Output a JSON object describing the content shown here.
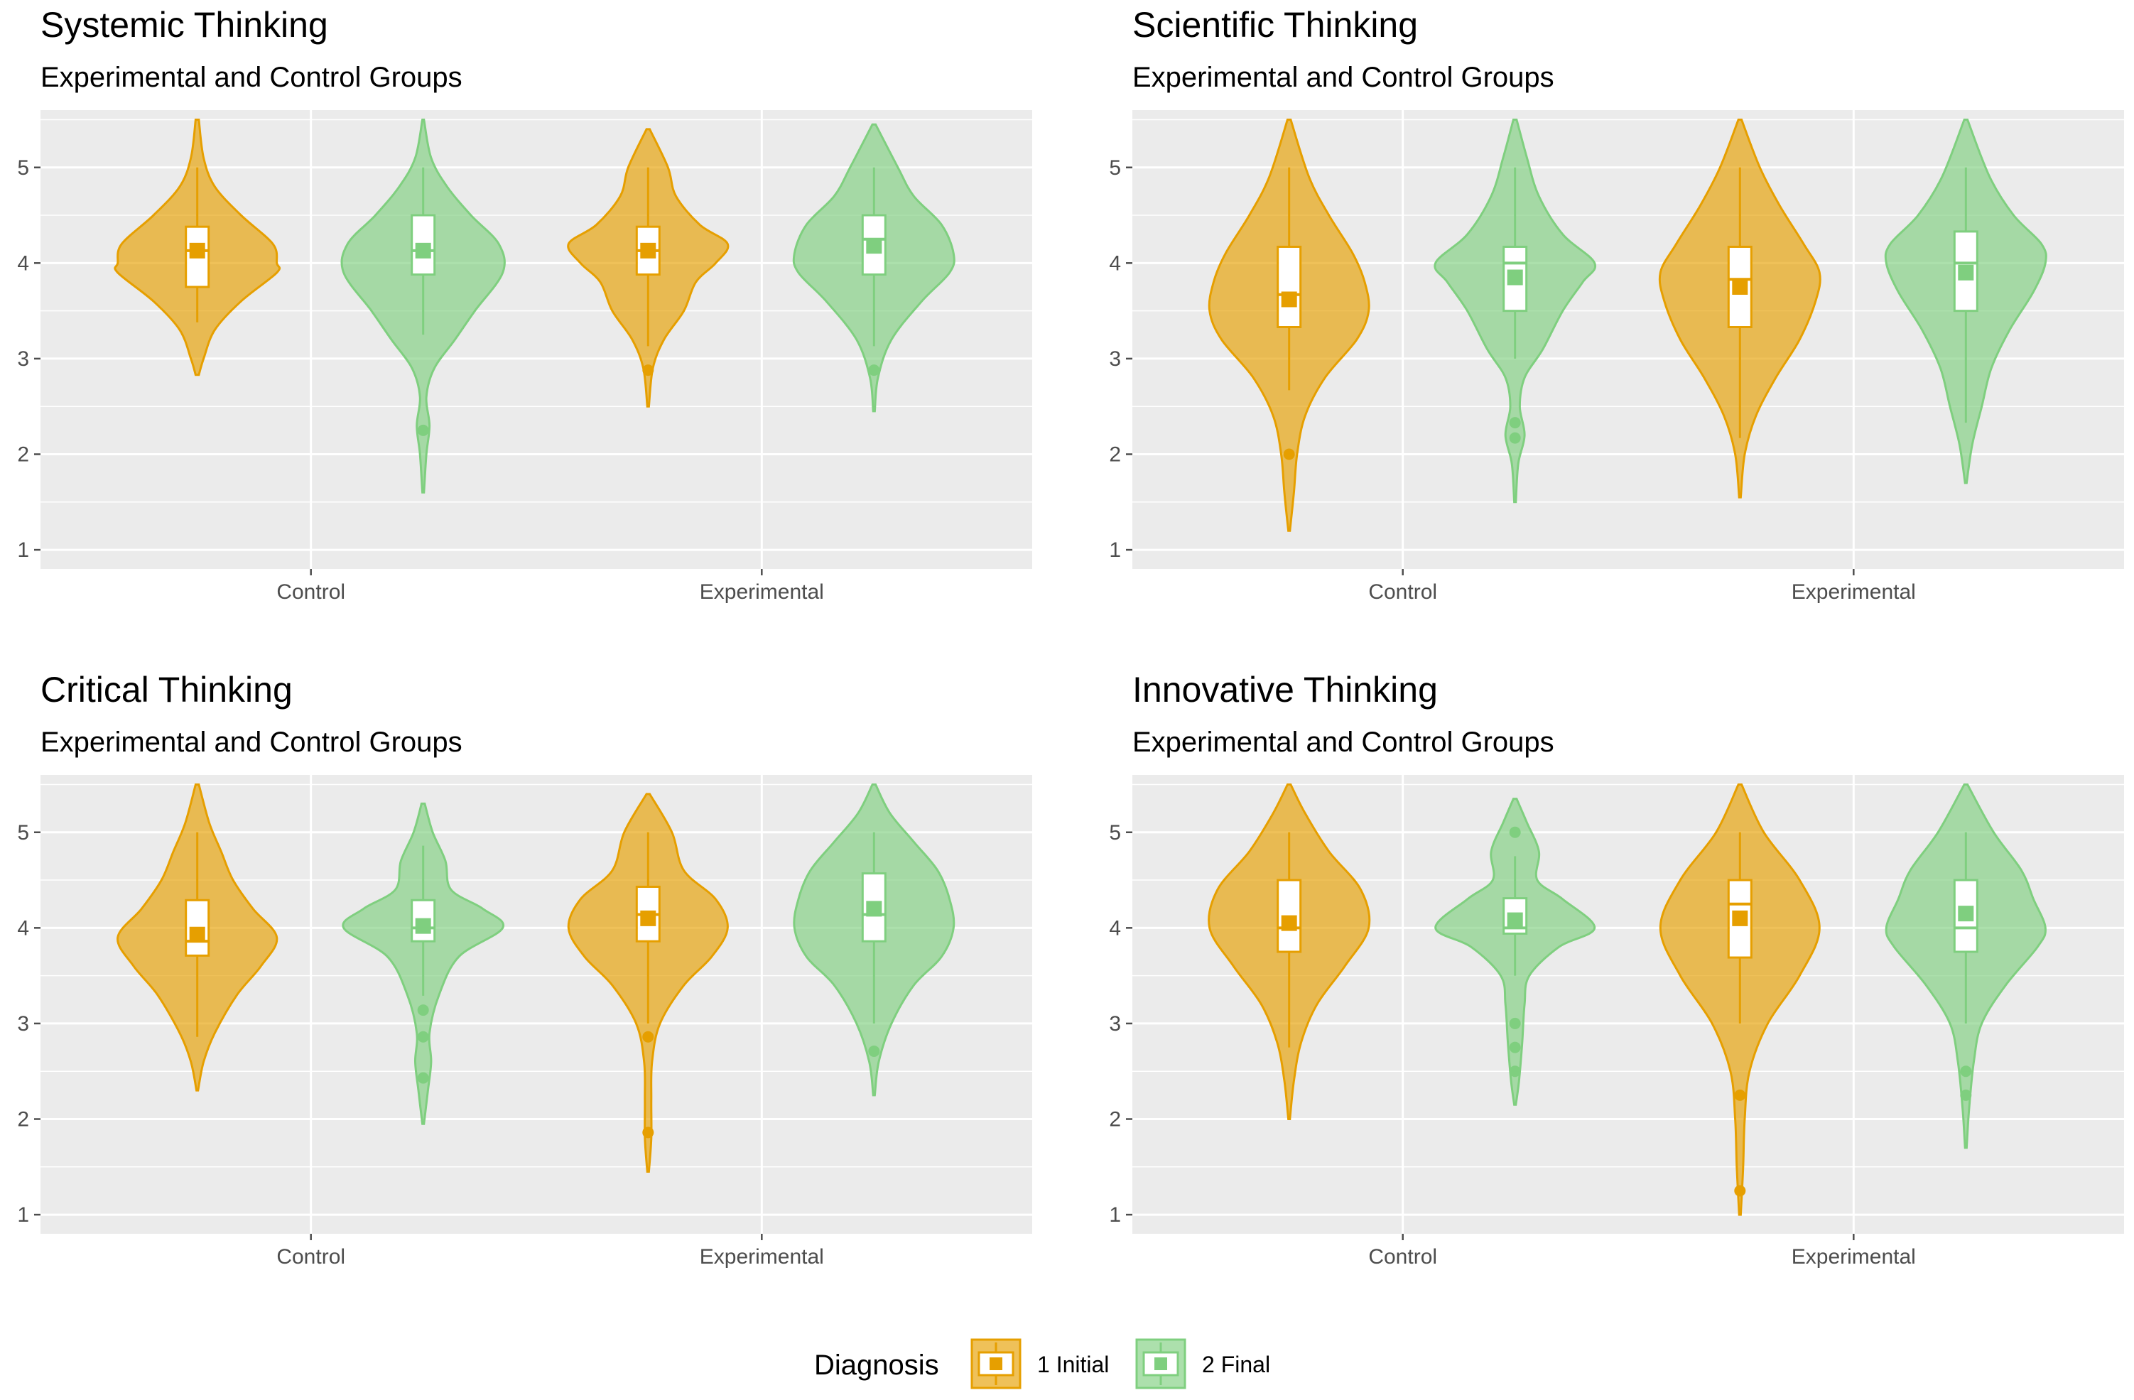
{
  "legend": {
    "title": "Diagnosis",
    "items": [
      {
        "label": "1 Initial",
        "color": "#E69F00"
      },
      {
        "label": "2 Final",
        "color": "#7FCF7F"
      }
    ]
  },
  "style": {
    "panel_bg": "#EBEBEB",
    "grid_color": "#FFFFFF",
    "tick_color": "#4D4D4D"
  },
  "chart_data": [
    {
      "type": "violin",
      "title": "Systemic Thinking",
      "subtitle": "Experimental and Control Groups",
      "categories": [
        "Control",
        "Experimental"
      ],
      "ylim": [
        0.8,
        5.6
      ],
      "yticks": [
        1,
        2,
        3,
        4,
        5
      ],
      "groups": [
        {
          "category": "Control",
          "series": "1 Initial",
          "color": "#E69F00",
          "violin": [
            [
              2.83,
              0.02
            ],
            [
              3.0,
              0.08
            ],
            [
              3.3,
              0.22
            ],
            [
              3.6,
              0.55
            ],
            [
              3.9,
              1.0
            ],
            [
              4.0,
              1.0
            ],
            [
              4.2,
              0.95
            ],
            [
              4.5,
              0.55
            ],
            [
              4.8,
              0.22
            ],
            [
              5.1,
              0.08
            ],
            [
              5.5,
              0.02
            ]
          ],
          "box": {
            "q1": 3.75,
            "median": 4.13,
            "q3": 4.38,
            "wlo": 3.38,
            "whi": 5.0
          },
          "mean": 4.13,
          "outliers": []
        },
        {
          "category": "Control",
          "series": "2 Final",
          "color": "#7FCF7F",
          "violin": [
            [
              1.6,
              0.01
            ],
            [
              2.0,
              0.04
            ],
            [
              2.3,
              0.08
            ],
            [
              2.6,
              0.04
            ],
            [
              2.9,
              0.14
            ],
            [
              3.2,
              0.4
            ],
            [
              3.5,
              0.65
            ],
            [
              3.9,
              1.0
            ],
            [
              4.2,
              0.95
            ],
            [
              4.5,
              0.6
            ],
            [
              4.8,
              0.3
            ],
            [
              5.1,
              0.1
            ],
            [
              5.5,
              0.01
            ]
          ],
          "box": {
            "q1": 3.88,
            "median": 4.13,
            "q3": 4.5,
            "wlo": 3.25,
            "whi": 5.0
          },
          "mean": 4.13,
          "outliers": [
            2.25
          ]
        },
        {
          "category": "Experimental",
          "series": "1 Initial",
          "color": "#E69F00",
          "violin": [
            [
              2.5,
              0.01
            ],
            [
              2.9,
              0.06
            ],
            [
              3.2,
              0.2
            ],
            [
              3.5,
              0.45
            ],
            [
              3.8,
              0.6
            ],
            [
              4.0,
              0.85
            ],
            [
              4.2,
              1.0
            ],
            [
              4.4,
              0.65
            ],
            [
              4.7,
              0.35
            ],
            [
              5.0,
              0.25
            ],
            [
              5.4,
              0.02
            ]
          ],
          "box": {
            "q1": 3.88,
            "median": 4.13,
            "q3": 4.38,
            "wlo": 3.13,
            "whi": 5.0
          },
          "mean": 4.13,
          "outliers": [
            2.88
          ]
        },
        {
          "category": "Experimental",
          "series": "2 Final",
          "color": "#7FCF7F",
          "violin": [
            [
              2.45,
              0.01
            ],
            [
              2.8,
              0.05
            ],
            [
              3.2,
              0.22
            ],
            [
              3.6,
              0.6
            ],
            [
              3.9,
              0.95
            ],
            [
              4.1,
              1.0
            ],
            [
              4.4,
              0.85
            ],
            [
              4.7,
              0.5
            ],
            [
              5.0,
              0.3
            ],
            [
              5.45,
              0.02
            ]
          ],
          "box": {
            "q1": 3.88,
            "median": 4.25,
            "q3": 4.5,
            "wlo": 3.13,
            "whi": 5.0
          },
          "mean": 4.18,
          "outliers": [
            2.88
          ]
        }
      ]
    },
    {
      "type": "violin",
      "title": "Scientific Thinking",
      "subtitle": "Experimental and Control Groups",
      "categories": [
        "Control",
        "Experimental"
      ],
      "ylim": [
        0.8,
        5.6
      ],
      "yticks": [
        1,
        2,
        3,
        4,
        5
      ],
      "groups": [
        {
          "category": "Control",
          "series": "1 Initial",
          "color": "#E69F00",
          "violin": [
            [
              1.2,
              0.01
            ],
            [
              1.6,
              0.06
            ],
            [
              2.0,
              0.1
            ],
            [
              2.4,
              0.2
            ],
            [
              2.8,
              0.45
            ],
            [
              3.2,
              0.85
            ],
            [
              3.5,
              1.0
            ],
            [
              3.8,
              0.95
            ],
            [
              4.1,
              0.8
            ],
            [
              4.5,
              0.5
            ],
            [
              4.9,
              0.25
            ],
            [
              5.5,
              0.02
            ]
          ],
          "box": {
            "q1": 3.33,
            "median": 3.67,
            "q3": 4.17,
            "wlo": 2.67,
            "whi": 5.0
          },
          "mean": 3.62,
          "outliers": [
            2.0
          ]
        },
        {
          "category": "Control",
          "series": "2 Final",
          "color": "#7FCF7F",
          "violin": [
            [
              1.5,
              0.01
            ],
            [
              1.9,
              0.04
            ],
            [
              2.2,
              0.12
            ],
            [
              2.5,
              0.06
            ],
            [
              2.8,
              0.12
            ],
            [
              3.1,
              0.35
            ],
            [
              3.5,
              0.6
            ],
            [
              3.8,
              0.85
            ],
            [
              4.0,
              1.0
            ],
            [
              4.3,
              0.6
            ],
            [
              4.7,
              0.3
            ],
            [
              5.1,
              0.15
            ],
            [
              5.5,
              0.02
            ]
          ],
          "box": {
            "q1": 3.5,
            "median": 4.0,
            "q3": 4.17,
            "wlo": 3.0,
            "whi": 5.0
          },
          "mean": 3.85,
          "outliers": [
            2.33,
            2.17
          ]
        },
        {
          "category": "Experimental",
          "series": "1 Initial",
          "color": "#E69F00",
          "violin": [
            [
              1.55,
              0.01
            ],
            [
              2.0,
              0.06
            ],
            [
              2.4,
              0.2
            ],
            [
              2.8,
              0.45
            ],
            [
              3.2,
              0.75
            ],
            [
              3.6,
              0.95
            ],
            [
              3.9,
              1.0
            ],
            [
              4.2,
              0.8
            ],
            [
              4.6,
              0.5
            ],
            [
              5.0,
              0.25
            ],
            [
              5.5,
              0.02
            ]
          ],
          "box": {
            "q1": 3.33,
            "median": 3.83,
            "q3": 4.17,
            "wlo": 2.17,
            "whi": 5.0
          },
          "mean": 3.75,
          "outliers": []
        },
        {
          "category": "Experimental",
          "series": "2 Final",
          "color": "#7FCF7F",
          "violin": [
            [
              1.7,
              0.01
            ],
            [
              2.1,
              0.08
            ],
            [
              2.5,
              0.2
            ],
            [
              2.9,
              0.32
            ],
            [
              3.3,
              0.55
            ],
            [
              3.7,
              0.85
            ],
            [
              4.0,
              1.0
            ],
            [
              4.2,
              0.95
            ],
            [
              4.5,
              0.6
            ],
            [
              4.9,
              0.3
            ],
            [
              5.5,
              0.02
            ]
          ],
          "box": {
            "q1": 3.5,
            "median": 4.0,
            "q3": 4.33,
            "wlo": 2.33,
            "whi": 5.0
          },
          "mean": 3.9,
          "outliers": []
        }
      ]
    },
    {
      "type": "violin",
      "title": "Critical Thinking",
      "subtitle": "Experimental and Control Groups",
      "categories": [
        "Control",
        "Experimental"
      ],
      "ylim": [
        0.8,
        5.6
      ],
      "yticks": [
        1,
        2,
        3,
        4,
        5
      ],
      "groups": [
        {
          "category": "Control",
          "series": "1 Initial",
          "color": "#E69F00",
          "violin": [
            [
              2.3,
              0.01
            ],
            [
              2.6,
              0.08
            ],
            [
              2.9,
              0.22
            ],
            [
              3.3,
              0.5
            ],
            [
              3.6,
              0.8
            ],
            [
              3.9,
              1.0
            ],
            [
              4.2,
              0.7
            ],
            [
              4.5,
              0.45
            ],
            [
              4.8,
              0.3
            ],
            [
              5.1,
              0.15
            ],
            [
              5.5,
              0.02
            ]
          ],
          "box": {
            "q1": 3.71,
            "median": 3.86,
            "q3": 4.29,
            "wlo": 2.86,
            "whi": 5.0
          },
          "mean": 3.93,
          "outliers": []
        },
        {
          "category": "Control",
          "series": "2 Final",
          "color": "#7FCF7F",
          "violin": [
            [
              1.95,
              0.01
            ],
            [
              2.3,
              0.06
            ],
            [
              2.6,
              0.1
            ],
            [
              2.9,
              0.08
            ],
            [
              3.3,
              0.2
            ],
            [
              3.7,
              0.45
            ],
            [
              4.0,
              1.0
            ],
            [
              4.2,
              0.75
            ],
            [
              4.4,
              0.35
            ],
            [
              4.7,
              0.28
            ],
            [
              5.0,
              0.12
            ],
            [
              5.3,
              0.02
            ]
          ],
          "box": {
            "q1": 3.86,
            "median": 4.0,
            "q3": 4.29,
            "wlo": 3.29,
            "whi": 4.86
          },
          "mean": 4.02,
          "outliers": [
            3.14,
            2.86,
            2.43
          ]
        },
        {
          "category": "Experimental",
          "series": "1 Initial",
          "color": "#E69F00",
          "violin": [
            [
              1.45,
              0.01
            ],
            [
              1.8,
              0.04
            ],
            [
              2.2,
              0.04
            ],
            [
              2.6,
              0.05
            ],
            [
              3.0,
              0.15
            ],
            [
              3.4,
              0.45
            ],
            [
              3.7,
              0.8
            ],
            [
              4.0,
              1.0
            ],
            [
              4.3,
              0.85
            ],
            [
              4.6,
              0.45
            ],
            [
              5.0,
              0.3
            ],
            [
              5.4,
              0.02
            ]
          ],
          "box": {
            "q1": 3.86,
            "median": 4.14,
            "q3": 4.43,
            "wlo": 3.0,
            "whi": 5.0
          },
          "mean": 4.1,
          "outliers": [
            2.86,
            1.86
          ]
        },
        {
          "category": "Experimental",
          "series": "2 Final",
          "color": "#7FCF7F",
          "violin": [
            [
              2.25,
              0.01
            ],
            [
              2.6,
              0.06
            ],
            [
              3.0,
              0.22
            ],
            [
              3.4,
              0.5
            ],
            [
              3.7,
              0.85
            ],
            [
              4.0,
              1.0
            ],
            [
              4.3,
              0.95
            ],
            [
              4.6,
              0.8
            ],
            [
              4.9,
              0.5
            ],
            [
              5.2,
              0.2
            ],
            [
              5.5,
              0.02
            ]
          ],
          "box": {
            "q1": 3.86,
            "median": 4.14,
            "q3": 4.57,
            "wlo": 3.0,
            "whi": 5.0
          },
          "mean": 4.2,
          "outliers": [
            2.71
          ]
        }
      ]
    },
    {
      "type": "violin",
      "title": "Innovative Thinking",
      "subtitle": "Experimental and Control Groups",
      "categories": [
        "Control",
        "Experimental"
      ],
      "ylim": [
        0.8,
        5.6
      ],
      "yticks": [
        1,
        2,
        3,
        4,
        5
      ],
      "groups": [
        {
          "category": "Control",
          "series": "1 Initial",
          "color": "#E69F00",
          "violin": [
            [
              2.0,
              0.01
            ],
            [
              2.4,
              0.06
            ],
            [
              2.8,
              0.15
            ],
            [
              3.2,
              0.35
            ],
            [
              3.6,
              0.7
            ],
            [
              4.0,
              1.0
            ],
            [
              4.4,
              0.9
            ],
            [
              4.8,
              0.5
            ],
            [
              5.2,
              0.2
            ],
            [
              5.5,
              0.02
            ]
          ],
          "box": {
            "q1": 3.75,
            "median": 4.0,
            "q3": 4.5,
            "wlo": 2.75,
            "whi": 5.0
          },
          "mean": 4.05,
          "outliers": []
        },
        {
          "category": "Control",
          "series": "2 Final",
          "color": "#7FCF7F",
          "violin": [
            [
              2.15,
              0.01
            ],
            [
              2.4,
              0.05
            ],
            [
              2.8,
              0.09
            ],
            [
              3.2,
              0.12
            ],
            [
              3.5,
              0.18
            ],
            [
              3.8,
              0.55
            ],
            [
              4.0,
              1.0
            ],
            [
              4.3,
              0.6
            ],
            [
              4.5,
              0.28
            ],
            [
              4.8,
              0.3
            ],
            [
              5.1,
              0.15
            ],
            [
              5.35,
              0.02
            ]
          ],
          "box": {
            "q1": 3.94,
            "median": 4.0,
            "q3": 4.31,
            "wlo": 3.5,
            "whi": 4.75
          },
          "mean": 4.08,
          "outliers": [
            5.0,
            3.0,
            2.75,
            2.5
          ]
        },
        {
          "category": "Experimental",
          "series": "1 Initial",
          "color": "#E69F00",
          "violin": [
            [
              1.0,
              0.01
            ],
            [
              1.5,
              0.04
            ],
            [
              2.0,
              0.06
            ],
            [
              2.5,
              0.12
            ],
            [
              3.0,
              0.35
            ],
            [
              3.5,
              0.75
            ],
            [
              4.0,
              1.0
            ],
            [
              4.5,
              0.75
            ],
            [
              5.0,
              0.3
            ],
            [
              5.5,
              0.02
            ]
          ],
          "box": {
            "q1": 3.69,
            "median": 4.25,
            "q3": 4.5,
            "wlo": 3.0,
            "whi": 5.0
          },
          "mean": 4.1,
          "outliers": [
            2.25,
            1.25
          ]
        },
        {
          "category": "Experimental",
          "series": "2 Final",
          "color": "#7FCF7F",
          "violin": [
            [
              1.7,
              0.01
            ],
            [
              2.1,
              0.04
            ],
            [
              2.6,
              0.1
            ],
            [
              3.0,
              0.2
            ],
            [
              3.4,
              0.5
            ],
            [
              3.8,
              0.9
            ],
            [
              4.0,
              1.0
            ],
            [
              4.3,
              0.85
            ],
            [
              4.6,
              0.7
            ],
            [
              5.0,
              0.35
            ],
            [
              5.5,
              0.02
            ]
          ],
          "box": {
            "q1": 3.75,
            "median": 4.0,
            "q3": 4.5,
            "wlo": 3.0,
            "whi": 5.0
          },
          "mean": 4.15,
          "outliers": [
            2.5,
            2.25
          ]
        }
      ]
    }
  ]
}
